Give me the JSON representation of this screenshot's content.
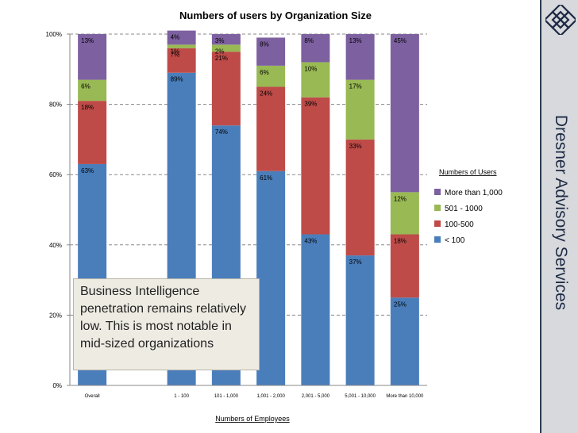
{
  "chart_data": {
    "type": "bar",
    "stacked": true,
    "title": "Numbers of users by Organization Size",
    "xlabel": "Numbers of Employees",
    "ylabel": "",
    "ylim": [
      0,
      100
    ],
    "yticks": [
      "0%",
      "20%",
      "40%",
      "60%",
      "80%",
      "100%"
    ],
    "grid": true,
    "legend_title": "Numbers of Users",
    "legend_position": "right",
    "categories": [
      "Overall",
      "",
      "1 - 100",
      "101 - 1,000",
      "1,001 - 2,000",
      "2,001 - 5,000",
      "5,001 - 10,000",
      "More than 10,000"
    ],
    "series": [
      {
        "name": "< 100",
        "color": "#4a7ebb",
        "values": [
          63,
          null,
          89,
          74,
          61,
          43,
          37,
          25
        ]
      },
      {
        "name": "100-500",
        "color": "#be4b48",
        "values": [
          18,
          null,
          7,
          21,
          24,
          39,
          33,
          18
        ]
      },
      {
        "name": "501 - 1000",
        "color": "#98b954",
        "values": [
          6,
          null,
          1,
          2,
          6,
          10,
          17,
          12
        ]
      },
      {
        "name": "More than 1,000",
        "color": "#7d60a0",
        "values": [
          13,
          null,
          4,
          3,
          8,
          8,
          13,
          45
        ]
      }
    ]
  },
  "callout": {
    "text": "Business Intelligence penetration remains relatively low. This is most notable in mid-sized organizations"
  },
  "brand": {
    "name": "Dresner Advisory Services",
    "logo_icon": "endless-knot-icon"
  }
}
